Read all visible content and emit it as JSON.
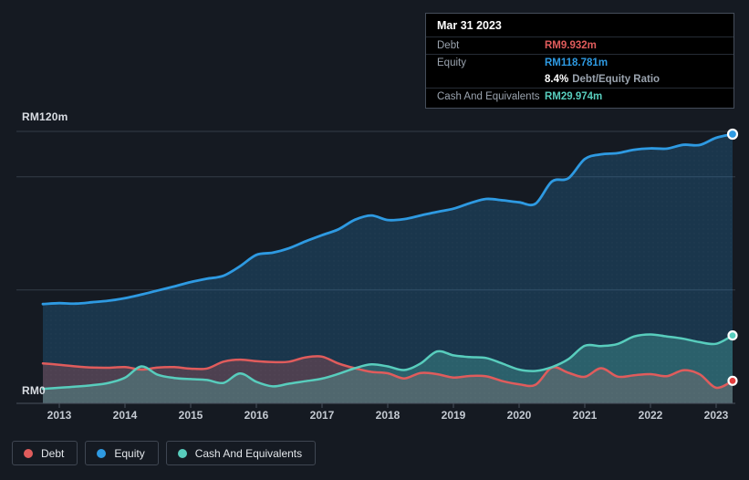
{
  "colors": {
    "background": "#151a22",
    "debt": "#e05c5c",
    "debt_marker": "#e23d3d",
    "equity": "#2e9ae2",
    "cash": "#58cdbd",
    "gridline": "#343c48",
    "baseline": "#49515d",
    "tick": "#49515d",
    "axis_text": "#c4cad2",
    "y_label_text": "#d9dde3",
    "tooltip_bg": "#000000",
    "tooltip_border": "#454d5a",
    "tooltip_label": "#9aa3ae",
    "legend_border": "#3f4652",
    "legend_text": "#e2e6ea"
  },
  "tooltip": {
    "title": "Mar 31 2023",
    "debt_label": "Debt",
    "debt_value": "RM9.932m",
    "equity_label": "Equity",
    "equity_value": "RM118.781m",
    "ratio_value": "8.4%",
    "ratio_label": "Debt/Equity Ratio",
    "cash_label": "Cash And Equivalents",
    "cash_value": "RM29.974m"
  },
  "y_axis": {
    "top_label": "RM120m",
    "bottom_label": "RM0"
  },
  "legend": {
    "items": [
      {
        "key": "debt",
        "label": "Debt"
      },
      {
        "key": "equity",
        "label": "Equity"
      },
      {
        "key": "cash",
        "label": "Cash And Equivalents"
      }
    ]
  },
  "chart_data": {
    "type": "area",
    "title": "Debt to Equity History (simplywall.st style)",
    "x_unit": "year (quarterly samples)",
    "y_unit": "RM millions",
    "ylim": [
      0,
      120
    ],
    "y_gridlines": [
      120,
      100,
      50,
      0
    ],
    "x_ticks": [
      2013,
      2014,
      2015,
      2016,
      2017,
      2018,
      2019,
      2020,
      2021,
      2022,
      2023
    ],
    "x": [
      2012.75,
      2013.0,
      2013.25,
      2013.5,
      2013.75,
      2014.0,
      2014.25,
      2014.5,
      2014.75,
      2015.0,
      2015.25,
      2015.5,
      2015.75,
      2016.0,
      2016.25,
      2016.5,
      2016.75,
      2017.0,
      2017.25,
      2017.5,
      2017.75,
      2018.0,
      2018.25,
      2018.5,
      2018.75,
      2019.0,
      2019.25,
      2019.5,
      2019.75,
      2020.0,
      2020.25,
      2020.5,
      2020.75,
      2021.0,
      2021.25,
      2021.5,
      2021.75,
      2022.0,
      2022.25,
      2022.5,
      2022.75,
      2023.0,
      2023.25
    ],
    "series": [
      {
        "key": "equity",
        "name": "Equity",
        "color": "#2e9ae2",
        "fill_opacity": 0.22,
        "values": [
          43.8,
          44.2,
          44.0,
          44.6,
          45.3,
          46.4,
          48.0,
          49.8,
          51.6,
          53.5,
          55.0,
          56.3,
          60.5,
          65.5,
          66.5,
          68.5,
          71.5,
          74.2,
          76.8,
          81.0,
          82.9,
          80.9,
          81.3,
          82.9,
          84.5,
          85.9,
          88.3,
          90.2,
          89.6,
          88.7,
          88.1,
          97.9,
          99.3,
          107.8,
          109.9,
          110.4,
          111.9,
          112.5,
          112.4,
          114.1,
          114.0,
          117.2,
          118.781
        ]
      },
      {
        "key": "debt",
        "name": "Debt",
        "color": "#e05c5c",
        "fill_opacity": 0.26,
        "values": [
          17.6,
          17.0,
          16.3,
          15.8,
          15.7,
          16.0,
          14.9,
          15.8,
          16.0,
          15.3,
          15.4,
          18.4,
          19.3,
          18.6,
          18.2,
          18.4,
          20.3,
          20.6,
          17.6,
          15.5,
          13.9,
          13.3,
          11.0,
          13.4,
          12.9,
          11.4,
          12.1,
          11.9,
          9.8,
          8.4,
          8.2,
          15.8,
          13.5,
          11.7,
          15.5,
          11.8,
          12.4,
          12.9,
          12.0,
          14.6,
          12.8,
          6.9,
          9.932
        ]
      },
      {
        "key": "cash",
        "name": "Cash And Equivalents",
        "color": "#58cdbd",
        "fill_opacity": 0.28,
        "values": [
          6.4,
          6.9,
          7.4,
          8.0,
          9.0,
          11.3,
          16.3,
          12.6,
          11.2,
          10.7,
          10.3,
          9.0,
          13.2,
          9.5,
          7.5,
          8.7,
          9.8,
          10.9,
          13.0,
          15.5,
          17.2,
          16.3,
          14.7,
          17.6,
          22.9,
          21.2,
          20.4,
          20.0,
          17.5,
          14.9,
          14.3,
          16.0,
          19.5,
          25.4,
          25.3,
          26.2,
          29.5,
          30.4,
          29.5,
          28.5,
          27.0,
          26.3,
          29.974
        ]
      }
    ],
    "end_labels": {
      "equity": 118.781,
      "debt": 9.932,
      "cash": 29.974
    },
    "legend_position": "bottom-left",
    "grid": true
  }
}
